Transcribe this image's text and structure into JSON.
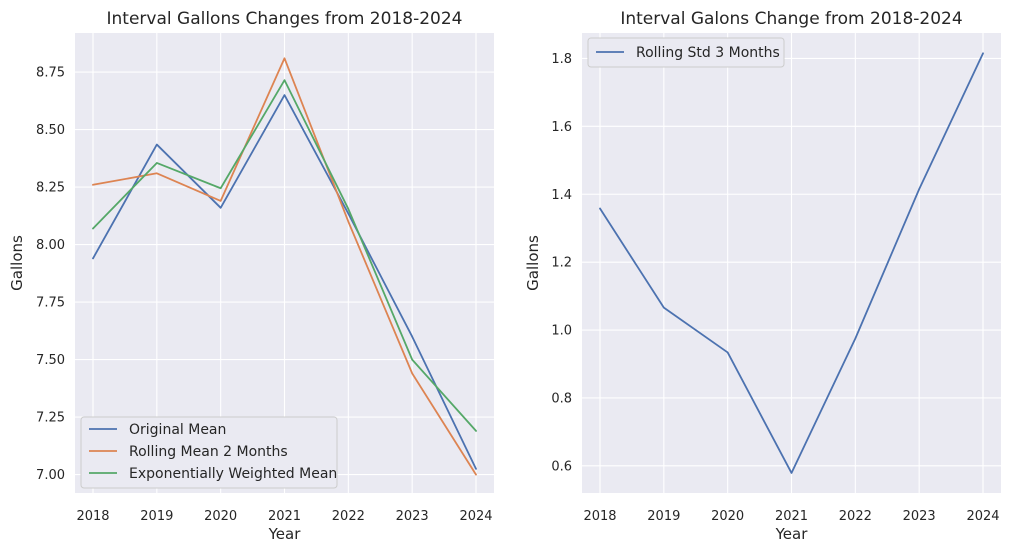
{
  "chart_data": [
    {
      "type": "line",
      "title": "Interval Gallons Changes from 2018-2024",
      "xlabel": "Year",
      "ylabel": "Gallons",
      "x": [
        "2018",
        "2019",
        "2020",
        "2021",
        "2022",
        "2023",
        "2024"
      ],
      "ylim": [
        6.92,
        8.92
      ],
      "yticks": [
        7.0,
        7.25,
        7.5,
        7.75,
        8.0,
        8.25,
        8.5,
        8.75
      ],
      "ytick_labels": [
        "7.00",
        "7.25",
        "7.50",
        "7.75",
        "8.00",
        "8.25",
        "8.50",
        "8.75"
      ],
      "grid": true,
      "legend_position": "lower-left",
      "series": [
        {
          "name": "Original Mean",
          "color": "#4c72b0",
          "values": [
            7.94,
            8.435,
            8.16,
            8.65,
            8.135,
            7.6,
            7.025
          ]
        },
        {
          "name": "Rolling Mean 2 Months",
          "color": "#dd8452",
          "values": [
            8.26,
            8.31,
            8.19,
            8.81,
            8.1,
            7.44,
            7.0
          ]
        },
        {
          "name": "Exponentially Weighted Mean",
          "color": "#55a868",
          "values": [
            8.07,
            8.355,
            8.245,
            8.715,
            8.155,
            7.5,
            7.19
          ]
        }
      ]
    },
    {
      "type": "line",
      "title": "Interval Galons Change from 2018-2024",
      "xlabel": "Year",
      "ylabel": "Gallons",
      "x": [
        "2018",
        "2019",
        "2020",
        "2021",
        "2022",
        "2023",
        "2024"
      ],
      "ylim": [
        0.52,
        1.875
      ],
      "yticks": [
        0.6,
        0.8,
        1.0,
        1.2,
        1.4,
        1.6,
        1.8
      ],
      "ytick_labels": [
        "0.6",
        "0.8",
        "1.0",
        "1.2",
        "1.4",
        "1.6",
        "1.8"
      ],
      "grid": true,
      "legend_position": "upper-left",
      "series": [
        {
          "name": "Rolling Std 3 Months",
          "color": "#4c72b0",
          "values": [
            1.358,
            1.066,
            0.934,
            0.579,
            0.975,
            1.415,
            1.815
          ]
        }
      ]
    }
  ]
}
